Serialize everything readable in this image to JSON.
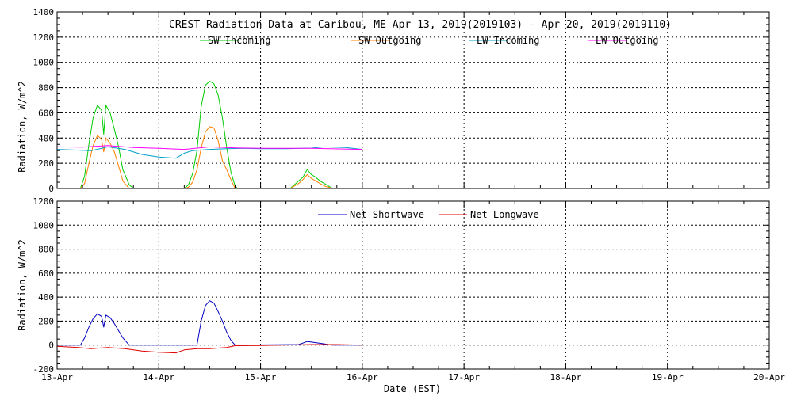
{
  "chart_data": [
    {
      "type": "line",
      "title": "CREST Radiation Data at Caribou, ME   Apr 13, 2019(2019103) - Apr 20, 2019(2019110)",
      "ylabel": "Radiation, W/m^2",
      "xlabel": "",
      "xlim": [
        "2019-04-13",
        "2019-04-20"
      ],
      "ylim": [
        0,
        1400
      ],
      "yticks": [
        0,
        200,
        400,
        600,
        800,
        1000,
        1200,
        1400
      ],
      "grid": true,
      "legend": "top",
      "series": [
        {
          "name": "SW Incoming",
          "color": "#00cc00",
          "points": [
            [
              "2019-04-13 05:30",
              0
            ],
            [
              "2019-04-13 06:30",
              100
            ],
            [
              "2019-04-13 07:30",
              350
            ],
            [
              "2019-04-13 08:30",
              560
            ],
            [
              "2019-04-13 09:30",
              660
            ],
            [
              "2019-04-13 10:30",
              620
            ],
            [
              "2019-04-13 11:00",
              430
            ],
            [
              "2019-04-13 11:30",
              660
            ],
            [
              "2019-04-13 12:30",
              600
            ],
            [
              "2019-04-13 13:30",
              470
            ],
            [
              "2019-04-13 14:30",
              330
            ],
            [
              "2019-04-13 15:30",
              150
            ],
            [
              "2019-04-13 17:00",
              30
            ],
            [
              "2019-04-13 18:00",
              0
            ],
            [
              "2019-04-14 06:00",
              0
            ],
            [
              "2019-04-14 07:00",
              30
            ],
            [
              "2019-04-14 08:00",
              120
            ],
            [
              "2019-04-14 09:00",
              300
            ],
            [
              "2019-04-14 10:00",
              650
            ],
            [
              "2019-04-14 11:00",
              820
            ],
            [
              "2019-04-14 12:00",
              850
            ],
            [
              "2019-04-14 13:00",
              830
            ],
            [
              "2019-04-14 14:00",
              740
            ],
            [
              "2019-04-14 15:00",
              560
            ],
            [
              "2019-04-14 16:00",
              330
            ],
            [
              "2019-04-14 17:00",
              130
            ],
            [
              "2019-04-14 18:00",
              20
            ],
            [
              "2019-04-14 18:30",
              0
            ],
            [
              "2019-04-15 07:00",
              0
            ],
            [
              "2019-04-15 08:00",
              30
            ],
            [
              "2019-04-15 09:00",
              60
            ],
            [
              "2019-04-15 10:00",
              90
            ],
            [
              "2019-04-15 11:00",
              150
            ],
            [
              "2019-04-15 12:00",
              110
            ],
            [
              "2019-04-15 13:00",
              90
            ],
            [
              "2019-04-15 14:00",
              60
            ],
            [
              "2019-04-15 15:00",
              40
            ],
            [
              "2019-04-15 16:00",
              20
            ],
            [
              "2019-04-15 17:00",
              0
            ]
          ]
        },
        {
          "name": "SW Outgoing",
          "color": "#ff8000",
          "points": [
            [
              "2019-04-13 05:30",
              0
            ],
            [
              "2019-04-13 06:30",
              40
            ],
            [
              "2019-04-13 07:30",
              200
            ],
            [
              "2019-04-13 08:30",
              340
            ],
            [
              "2019-04-13 09:30",
              420
            ],
            [
              "2019-04-13 10:30",
              390
            ],
            [
              "2019-04-13 11:00",
              290
            ],
            [
              "2019-04-13 11:30",
              400
            ],
            [
              "2019-04-13 12:30",
              360
            ],
            [
              "2019-04-13 13:30",
              290
            ],
            [
              "2019-04-13 14:30",
              180
            ],
            [
              "2019-04-13 15:30",
              60
            ],
            [
              "2019-04-13 17:00",
              0
            ],
            [
              "2019-04-14 06:00",
              0
            ],
            [
              "2019-04-14 07:00",
              10
            ],
            [
              "2019-04-14 08:00",
              50
            ],
            [
              "2019-04-14 09:00",
              150
            ],
            [
              "2019-04-14 10:00",
              320
            ],
            [
              "2019-04-14 11:00",
              450
            ],
            [
              "2019-04-14 12:00",
              490
            ],
            [
              "2019-04-14 13:00",
              480
            ],
            [
              "2019-04-14 14:00",
              380
            ],
            [
              "2019-04-14 15:00",
              220
            ],
            [
              "2019-04-14 16:00",
              150
            ],
            [
              "2019-04-14 17:00",
              70
            ],
            [
              "2019-04-14 18:00",
              0
            ],
            [
              "2019-04-15 07:00",
              0
            ],
            [
              "2019-04-15 08:00",
              20
            ],
            [
              "2019-04-15 09:00",
              40
            ],
            [
              "2019-04-15 10:00",
              70
            ],
            [
              "2019-04-15 11:00",
              110
            ],
            [
              "2019-04-15 12:00",
              80
            ],
            [
              "2019-04-15 13:00",
              60
            ],
            [
              "2019-04-15 14:00",
              40
            ],
            [
              "2019-04-15 15:00",
              20
            ],
            [
              "2019-04-15 16:00",
              10
            ],
            [
              "2019-04-15 17:00",
              0
            ]
          ]
        },
        {
          "name": "LW Incoming",
          "color": "#00a0c8",
          "points": [
            [
              "2019-04-13 00:00",
              310
            ],
            [
              "2019-04-13 04:00",
              305
            ],
            [
              "2019-04-13 08:00",
              300
            ],
            [
              "2019-04-13 12:00",
              330
            ],
            [
              "2019-04-13 16:00",
              310
            ],
            [
              "2019-04-13 20:00",
              270
            ],
            [
              "2019-04-14 00:00",
              250
            ],
            [
              "2019-04-14 04:00",
              240
            ],
            [
              "2019-04-14 06:00",
              280
            ],
            [
              "2019-04-14 08:00",
              300
            ],
            [
              "2019-04-14 12:00",
              310
            ],
            [
              "2019-04-14 16:00",
              315
            ],
            [
              "2019-04-14 20:00",
              318
            ],
            [
              "2019-04-15 00:00",
              315
            ],
            [
              "2019-04-15 06:00",
              315
            ],
            [
              "2019-04-15 12:00",
              320
            ],
            [
              "2019-04-15 15:00",
              330
            ],
            [
              "2019-04-15 20:00",
              325
            ],
            [
              "2019-04-16 00:00",
              310
            ]
          ]
        },
        {
          "name": "LW Outgoing",
          "color": "#ff00ff",
          "points": [
            [
              "2019-04-13 00:00",
              330
            ],
            [
              "2019-04-13 06:00",
              328
            ],
            [
              "2019-04-13 12:00",
              340
            ],
            [
              "2019-04-13 18:00",
              325
            ],
            [
              "2019-04-14 00:00",
              318
            ],
            [
              "2019-04-14 06:00",
              310
            ],
            [
              "2019-04-14 12:00",
              330
            ],
            [
              "2019-04-14 18:00",
              322
            ],
            [
              "2019-04-15 00:00",
              318
            ],
            [
              "2019-04-15 12:00",
              318
            ],
            [
              "2019-04-16 00:00",
              310
            ]
          ]
        }
      ]
    },
    {
      "type": "line",
      "title": "",
      "ylabel": "Radiation, W/m^2",
      "xlabel": "Date (EST)",
      "xlim": [
        "2019-04-13",
        "2019-04-20"
      ],
      "ylim": [
        -200,
        1200
      ],
      "yticks": [
        -200,
        0,
        200,
        400,
        600,
        800,
        1000,
        1200
      ],
      "xticks": [
        "13-Apr",
        "14-Apr",
        "15-Apr",
        "16-Apr",
        "17-Apr",
        "18-Apr",
        "19-Apr",
        "20-Apr"
      ],
      "grid": true,
      "legend": "top",
      "series": [
        {
          "name": "Net Shortwave",
          "color": "#0000c0",
          "points": [
            [
              "2019-04-13 00:00",
              0
            ],
            [
              "2019-04-13 05:30",
              0
            ],
            [
              "2019-04-13 06:30",
              60
            ],
            [
              "2019-04-13 07:30",
              150
            ],
            [
              "2019-04-13 08:30",
              220
            ],
            [
              "2019-04-13 09:30",
              260
            ],
            [
              "2019-04-13 10:30",
              240
            ],
            [
              "2019-04-13 11:00",
              150
            ],
            [
              "2019-04-13 11:30",
              250
            ],
            [
              "2019-04-13 12:30",
              230
            ],
            [
              "2019-04-13 13:30",
              180
            ],
            [
              "2019-04-13 14:30",
              120
            ],
            [
              "2019-04-13 15:30",
              60
            ],
            [
              "2019-04-13 17:00",
              0
            ],
            [
              "2019-04-14 09:00",
              0
            ],
            [
              "2019-04-14 10:00",
              200
            ],
            [
              "2019-04-14 11:00",
              330
            ],
            [
              "2019-04-14 12:00",
              370
            ],
            [
              "2019-04-14 13:00",
              350
            ],
            [
              "2019-04-14 14:00",
              280
            ],
            [
              "2019-04-14 15:00",
              200
            ],
            [
              "2019-04-14 16:00",
              110
            ],
            [
              "2019-04-14 17:00",
              40
            ],
            [
              "2019-04-14 18:00",
              0
            ],
            [
              "2019-04-15 09:00",
              5
            ],
            [
              "2019-04-15 11:00",
              30
            ],
            [
              "2019-04-15 12:00",
              25
            ],
            [
              "2019-04-15 14:00",
              15
            ],
            [
              "2019-04-15 17:00",
              0
            ],
            [
              "2019-04-16 00:00",
              0
            ]
          ]
        },
        {
          "name": "Net Longwave",
          "color": "#e00000",
          "points": [
            [
              "2019-04-13 00:00",
              -10
            ],
            [
              "2019-04-13 05:00",
              -20
            ],
            [
              "2019-04-13 08:00",
              -30
            ],
            [
              "2019-04-13 12:00",
              -20
            ],
            [
              "2019-04-13 16:00",
              -30
            ],
            [
              "2019-04-13 20:00",
              -50
            ],
            [
              "2019-04-14 00:00",
              -60
            ],
            [
              "2019-04-14 04:00",
              -65
            ],
            [
              "2019-04-14 06:00",
              -40
            ],
            [
              "2019-04-14 09:00",
              -30
            ],
            [
              "2019-04-14 12:00",
              -30
            ],
            [
              "2019-04-14 16:00",
              -20
            ],
            [
              "2019-04-14 18:00",
              -5
            ],
            [
              "2019-04-15 00:00",
              -3
            ],
            [
              "2019-04-15 12:00",
              5
            ],
            [
              "2019-04-15 18:00",
              5
            ],
            [
              "2019-04-16 00:00",
              0
            ]
          ]
        }
      ]
    }
  ]
}
